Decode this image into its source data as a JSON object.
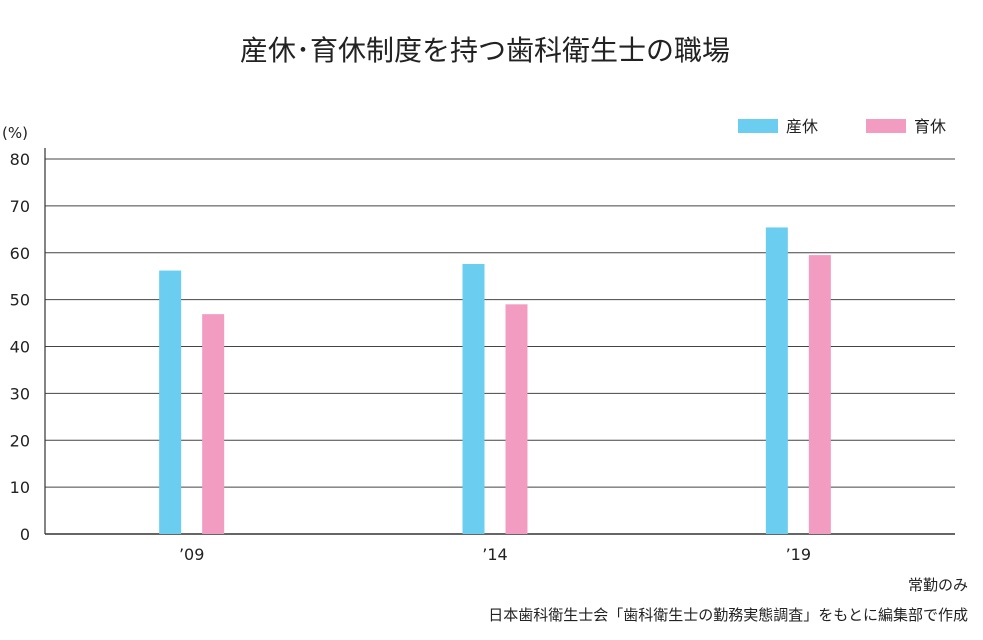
{
  "chart_data": {
    "type": "bar",
    "title": "産休･育休制度を持つ歯科衛生士の職場",
    "y_unit": "(%)",
    "categories": [
      "’09",
      "’14",
      "’19"
    ],
    "series": [
      {
        "name": "産休",
        "color": "#6bcdf0",
        "values": [
          56.2,
          57.6,
          65.4
        ]
      },
      {
        "name": "育休",
        "color": "#f29cc2",
        "values": [
          46.9,
          49.0,
          59.5
        ]
      }
    ],
    "ylim": [
      0,
      80
    ],
    "yticks": [
      0,
      10,
      20,
      30,
      40,
      50,
      60,
      70,
      80
    ],
    "grid": true,
    "legend_position": "top-right"
  },
  "notes": {
    "line1": "常勤のみ",
    "line2": "日本歯科衛生士会「歯科衛生士の勤務実態調査」をもとに編集部で作成"
  }
}
